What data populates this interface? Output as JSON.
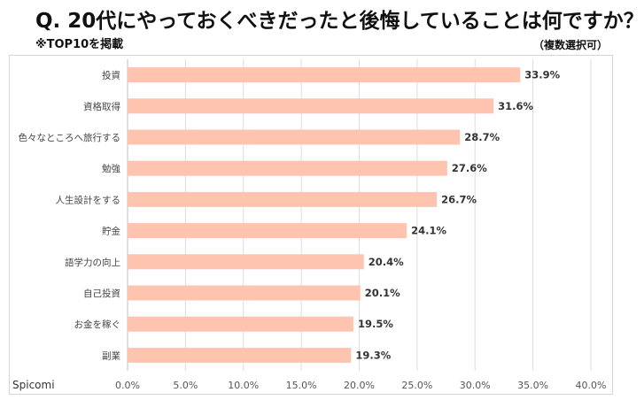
{
  "header": {
    "title": "Q. 20代にやっておくべきだったと後悔していることは何ですか？",
    "note": "※TOP10を掲載",
    "multi": "（複数選択可）"
  },
  "footer": {
    "brand": "Spicomi"
  },
  "colors": {
    "bar": "#ffc4b0",
    "grid": "#dcdcdc",
    "text": "#333333"
  },
  "chart_data": {
    "type": "bar",
    "orientation": "horizontal",
    "categories": [
      "投資",
      "資格取得",
      "色々なところへ旅行する",
      "勉強",
      "人生設計をする",
      "貯金",
      "語学力の向上",
      "自己投資",
      "お金を稼ぐ",
      "副業"
    ],
    "values": [
      33.9,
      31.6,
      28.7,
      27.6,
      26.7,
      24.1,
      20.4,
      20.1,
      19.5,
      19.3
    ],
    "data_labels": [
      "33.9%",
      "31.6%",
      "28.7%",
      "27.6%",
      "26.7%",
      "24.1%",
      "20.4%",
      "20.1%",
      "19.5%",
      "19.3%"
    ],
    "xlim": [
      0,
      40
    ],
    "xticks": [
      "0.0%",
      "5.0%",
      "10.0%",
      "15.0%",
      "20.0%",
      "25.0%",
      "30.0%",
      "35.0%",
      "40.0%"
    ],
    "grid": true,
    "legend": "none"
  }
}
